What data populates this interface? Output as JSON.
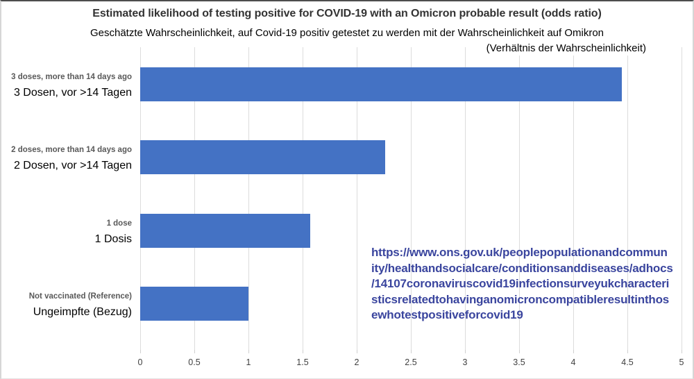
{
  "chart_data": {
    "type": "bar",
    "orientation": "horizontal",
    "title": "Estimated likelihood of testing positive for COVID-19 with an Omicron probable result (odds ratio)",
    "subtitle_line1": "Geschätzte Wahrscheinlichkeit, auf Covid-19 positiv getestet zu werden mit der Wahrscheinlichkeit auf Omikron",
    "subtitle_line2": "(Verhältnis der Wahrscheinlichkeit)",
    "categories": [
      {
        "label_en": "3 doses, more than 14 days ago",
        "label_de": "3 Dosen, vor >14 Tagen",
        "value": 4.45
      },
      {
        "label_en": "2 doses, more than 14 days ago",
        "label_de": "2 Dosen, vor >14 Tagen",
        "value": 2.26
      },
      {
        "label_en": "1 dose",
        "label_de": "1 Dosis",
        "value": 1.57
      },
      {
        "label_en": "Not vaccinated (Reference)",
        "label_de": "Ungeimpfte (Bezug)",
        "value": 1.0
      }
    ],
    "xlabel": "",
    "ylabel": "",
    "xlim": [
      0,
      5
    ],
    "x_ticks": [
      0,
      0.5,
      1,
      1.5,
      2,
      2.5,
      3,
      3.5,
      4,
      4.5,
      5
    ],
    "x_tick_labels": [
      "0",
      "0.5",
      "1",
      "1.5",
      "2",
      "2.5",
      "3",
      "3.5",
      "4",
      "4.5",
      "5"
    ],
    "grid": true,
    "legend": false,
    "bar_color": "#4472C4"
  },
  "source_link": {
    "url": "https://www.ons.gov.uk/peoplepopulationandcommunity/healthandsocialcare/conditionsanddiseases/adhocs/14107coronaviruscovid19infectionsurveyukcharacteristicsrelatedtohavinganomicroncompatibleresultinthosewhotestpositiveforcovid19",
    "display_lines": "https://www.ons.gov.uk/peoplepopulationandcommun\nity/healthandsocialcare/conditionsanddiseases/adhocs\n/14107coronaviruscovid19infectionsurveyukcharacteri\nsticsrelatedtohavinganomicroncompatibleresultinthos\newhotestpositiveforcovid19",
    "color": "#3A459E"
  }
}
